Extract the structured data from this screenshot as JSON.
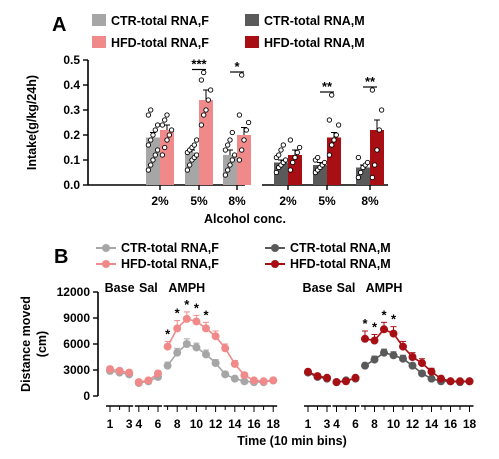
{
  "chart_data": [
    {
      "panel": "A",
      "type": "bar",
      "ylabel": "Intake(g/kg/24h)",
      "xlabel": "Alcohol conc.",
      "ylim": [
        0,
        0.5
      ],
      "yticks": [
        "0.0",
        "0.1",
        "0.2",
        "0.3",
        "0.4",
        "0.5"
      ],
      "legend": [
        {
          "name": "CTR-total RNA,F",
          "color": "#a6a6a6"
        },
        {
          "name": "HFD-total RNA,F",
          "color": "#f08a8a"
        },
        {
          "name": "CTR-total RNA,M",
          "color": "#5a5a5a"
        },
        {
          "name": "HFD-total RNA,M",
          "color": "#a80f14"
        }
      ],
      "groups": [
        {
          "label": "2%",
          "sex": "F",
          "ctr": 0.19,
          "ctr_err": 0.02,
          "hfd": 0.22,
          "hfd_err": 0.02,
          "sig": "",
          "ctr_points": [
            0.06,
            0.08,
            0.1,
            0.12,
            0.14,
            0.16,
            0.18,
            0.2,
            0.22,
            0.24,
            0.28,
            0.3
          ],
          "hfd_points": [
            0.12,
            0.15,
            0.18,
            0.2,
            0.22,
            0.24,
            0.26,
            0.28
          ]
        },
        {
          "label": "5%",
          "sex": "F",
          "ctr": 0.13,
          "ctr_err": 0.01,
          "hfd": 0.34,
          "hfd_err": 0.04,
          "sig": "***",
          "ctr_points": [
            0.06,
            0.08,
            0.1,
            0.11,
            0.12,
            0.13,
            0.14,
            0.15,
            0.16,
            0.18
          ],
          "hfd_points": [
            0.24,
            0.28,
            0.3,
            0.34,
            0.38,
            0.42,
            0.45
          ]
        },
        {
          "label": "8%",
          "sex": "F",
          "ctr": 0.12,
          "ctr_err": 0.02,
          "hfd": 0.2,
          "hfd_err": 0.03,
          "sig": "*",
          "ctr_points": [
            0.04,
            0.06,
            0.08,
            0.1,
            0.12,
            0.14,
            0.16,
            0.18,
            0.21
          ],
          "hfd_points": [
            0.1,
            0.14,
            0.18,
            0.22,
            0.25,
            0.28,
            0.44
          ]
        },
        {
          "label": "2%",
          "sex": "M",
          "ctr": 0.09,
          "ctr_err": 0.01,
          "hfd": 0.12,
          "hfd_err": 0.02,
          "sig": "",
          "ctr_points": [
            0.05,
            0.07,
            0.08,
            0.09,
            0.1,
            0.11,
            0.12,
            0.14,
            0.16
          ],
          "hfd_points": [
            0.06,
            0.09,
            0.11,
            0.13,
            0.15,
            0.18
          ]
        },
        {
          "label": "5%",
          "sex": "M",
          "ctr": 0.08,
          "ctr_err": 0.01,
          "hfd": 0.19,
          "hfd_err": 0.02,
          "sig": "**",
          "ctr_points": [
            0.05,
            0.06,
            0.07,
            0.08,
            0.09,
            0.1,
            0.11
          ],
          "hfd_points": [
            0.12,
            0.16,
            0.18,
            0.2,
            0.24,
            0.26,
            0.36
          ]
        },
        {
          "label": "8%",
          "sex": "M",
          "ctr": 0.07,
          "ctr_err": 0.01,
          "hfd": 0.22,
          "hfd_err": 0.04,
          "sig": "**",
          "ctr_points": [
            0.03,
            0.05,
            0.07,
            0.08,
            0.09,
            0.11
          ],
          "hfd_points": [
            0.03,
            0.08,
            0.14,
            0.22,
            0.3,
            0.38
          ]
        }
      ]
    },
    {
      "panel": "B",
      "type": "line",
      "ylabel": "Distance moved (cm)",
      "ylabel_lines": [
        "Distance moved",
        "(cm)"
      ],
      "xlabel": "Time (10 min bins)",
      "ylim": [
        0,
        12000
      ],
      "yticks": [
        "0",
        "3000",
        "6000",
        "9000",
        "12000"
      ],
      "xticks": [
        "1",
        "3",
        "4",
        "6",
        "8",
        "10",
        "12",
        "14",
        "16",
        "18"
      ],
      "phase_labels": [
        "Base",
        "Sal",
        "AMPH"
      ],
      "legend": [
        {
          "name": "CTR-total RNA,F",
          "color": "#a6a6a6"
        },
        {
          "name": "HFD-total RNA,F",
          "color": "#f08a8a"
        },
        {
          "name": "CTR-total RNA,M",
          "color": "#5a5a5a"
        },
        {
          "name": "HFD-total RNA,M",
          "color": "#a80f14"
        }
      ],
      "x": [
        1,
        2,
        3,
        4,
        5,
        6,
        7,
        8,
        9,
        10,
        11,
        12,
        13,
        14,
        15,
        16,
        17,
        18
      ],
      "segments": [
        [
          1,
          3
        ],
        [
          4,
          6
        ],
        [
          7,
          18
        ]
      ],
      "groups": [
        {
          "sex": "F",
          "series": [
            {
              "name": "CTR-total RNA,F",
              "color": "#a6a6a6",
              "values": [
                2900,
                2700,
                2500,
                1500,
                1700,
                2200,
                3500,
                5000,
                6000,
                5600,
                4800,
                3800,
                2500,
                2000,
                1700,
                1600,
                1600,
                1800
              ],
              "err": [
                300,
                300,
                300,
                200,
                200,
                300,
                400,
                500,
                600,
                500,
                500,
                400,
                300,
                300,
                200,
                200,
                200,
                200
              ]
            },
            {
              "name": "HFD-total RNA,F",
              "color": "#f08a8a",
              "values": [
                3100,
                2900,
                2700,
                1600,
                1800,
                2600,
                5700,
                7800,
                8900,
                8600,
                7800,
                6900,
                5500,
                3700,
                2400,
                1800,
                1700,
                1800
              ],
              "err": [
                300,
                300,
                300,
                200,
                200,
                300,
                600,
                900,
                800,
                700,
                700,
                600,
                500,
                400,
                300,
                200,
                200,
                200
              ]
            }
          ],
          "stars_at": [
            7,
            8,
            9,
            10,
            11
          ]
        },
        {
          "sex": "M",
          "series": [
            {
              "name": "CTR-total RNA,M",
              "color": "#5a5a5a",
              "values": [
                2700,
                2200,
                2000,
                1600,
                1800,
                2000,
                3500,
                4200,
                5000,
                4700,
                4300,
                3500,
                2600,
                2000,
                1700,
                1700,
                1600,
                1700
              ],
              "err": [
                200,
                200,
                200,
                200,
                200,
                200,
                300,
                400,
                400,
                400,
                400,
                300,
                300,
                200,
                200,
                200,
                200,
                200
              ]
            },
            {
              "name": "HFD-total RNA,M",
              "color": "#a80f14",
              "values": [
                2800,
                2300,
                2100,
                1600,
                1700,
                2100,
                6600,
                6400,
                7700,
                7200,
                5700,
                4500,
                3800,
                2800,
                2000,
                1700,
                1700,
                1700
              ],
              "err": [
                200,
                200,
                200,
                200,
                200,
                200,
                900,
                700,
                800,
                800,
                600,
                500,
                500,
                400,
                300,
                200,
                200,
                200
              ]
            }
          ],
          "stars_at": [
            7,
            8,
            9,
            10
          ]
        }
      ]
    }
  ]
}
